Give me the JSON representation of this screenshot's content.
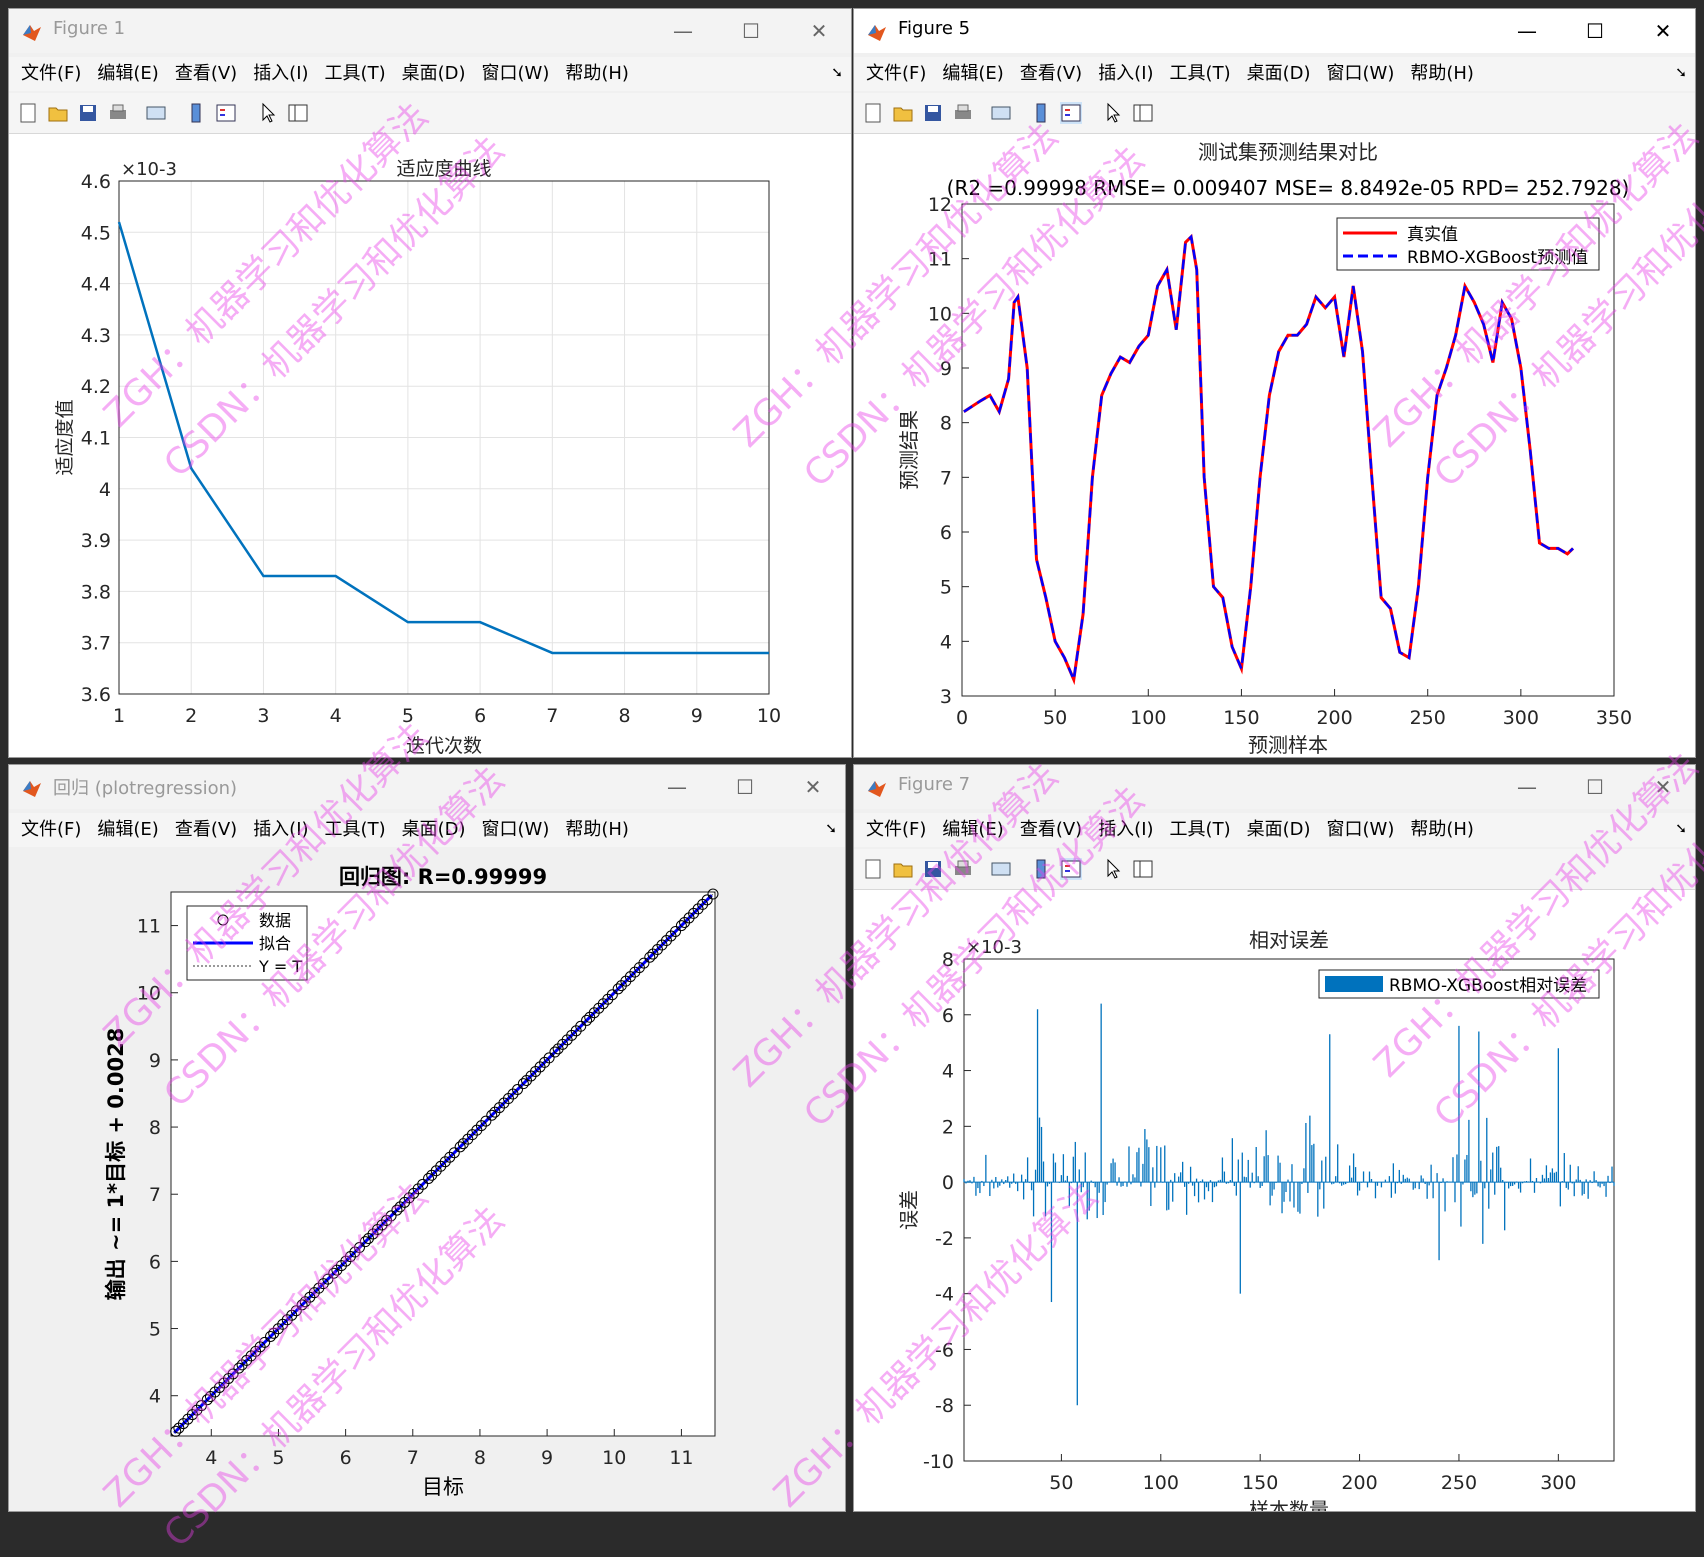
{
  "menus": [
    "文件(F)",
    "编辑(E)",
    "查看(V)",
    "插入(I)",
    "工具(T)",
    "桌面(D)",
    "窗口(W)",
    "帮助(H)"
  ],
  "fig1": {
    "title": "Figure 1",
    "chart_data": {
      "type": "line",
      "title": "适应度曲线",
      "xlabel": "迭代次数",
      "ylabel": "适应度值",
      "exponent": "×10-3",
      "x": [
        1,
        2,
        3,
        4,
        5,
        6,
        7,
        8,
        9,
        10
      ],
      "y": [
        4.52,
        4.04,
        3.83,
        3.83,
        3.74,
        3.74,
        3.68,
        3.68,
        3.68,
        3.68
      ],
      "xlim": [
        1,
        10
      ],
      "ylim": [
        3.6,
        4.6
      ],
      "xticks": [
        "1",
        "2",
        "3",
        "4",
        "5",
        "6",
        "7",
        "8",
        "9",
        "10"
      ],
      "yticks": [
        "3.6",
        "3.7",
        "3.8",
        "3.9",
        "4",
        "4.1",
        "4.2",
        "4.3",
        "4.4",
        "4.5",
        "4.6"
      ],
      "grid": true,
      "color": "#0072bd"
    }
  },
  "fig5": {
    "title": "Figure 5",
    "chart_data": {
      "type": "line",
      "title": "测试集预测结果对比",
      "subtitle": "(R2 =0.99998 RMSE= 0.009407 MSE= 8.8492e-05 RPD= 252.7928)",
      "xlabel": "预测样本",
      "ylabel": "预测结果",
      "xlim": [
        0,
        350
      ],
      "ylim": [
        3,
        12
      ],
      "xticks": [
        "0",
        "50",
        "100",
        "150",
        "200",
        "250",
        "300",
        "350"
      ],
      "yticks": [
        "3",
        "4",
        "5",
        "6",
        "7",
        "8",
        "9",
        "10",
        "11",
        "12"
      ],
      "legend": "top-right",
      "series": [
        {
          "name": "真实值",
          "color": "#ff0000",
          "style": "solid"
        },
        {
          "name": "RBMO-XGBoost预测值",
          "color": "#0000ff",
          "style": "dashed"
        }
      ],
      "x": [
        1,
        10,
        15,
        20,
        25,
        28,
        30,
        35,
        40,
        45,
        50,
        55,
        60,
        65,
        70,
        75,
        80,
        85,
        90,
        95,
        100,
        105,
        110,
        115,
        120,
        123,
        126,
        130,
        135,
        140,
        145,
        150,
        155,
        160,
        165,
        170,
        175,
        180,
        185,
        190,
        195,
        200,
        205,
        210,
        215,
        220,
        225,
        230,
        235,
        240,
        245,
        250,
        255,
        260,
        265,
        270,
        275,
        280,
        285,
        290,
        295,
        300,
        305,
        310,
        315,
        320,
        325,
        328
      ],
      "y": [
        8.2,
        8.4,
        8.5,
        8.2,
        8.8,
        10.2,
        10.3,
        9.0,
        5.5,
        4.8,
        4.0,
        3.7,
        3.3,
        4.5,
        7.0,
        8.5,
        8.9,
        9.2,
        9.1,
        9.4,
        9.6,
        10.5,
        10.8,
        9.7,
        11.3,
        11.4,
        10.8,
        7.0,
        5.0,
        4.8,
        3.9,
        3.5,
        5.0,
        7.0,
        8.5,
        9.3,
        9.6,
        9.6,
        9.8,
        10.3,
        10.1,
        10.3,
        9.2,
        10.5,
        9.3,
        7.0,
        4.8,
        4.6,
        3.8,
        3.7,
        5.0,
        7.0,
        8.5,
        9.0,
        9.6,
        10.5,
        10.2,
        9.8,
        9.1,
        10.2,
        9.9,
        9.0,
        7.5,
        5.8,
        5.7,
        5.7,
        5.6,
        5.7
      ]
    }
  },
  "fig_reg": {
    "title": "回归 (plotregression)",
    "chart_data": {
      "type": "scatter",
      "title": "回归图: R=0.99999",
      "xlabel": "目标",
      "ylabel": "输出 ~= 1*目标 + 0.0028",
      "xlim": [
        3.4,
        11.5
      ],
      "ylim": [
        3.4,
        11.5
      ],
      "xticks": [
        "4",
        "5",
        "6",
        "7",
        "8",
        "9",
        "10",
        "11"
      ],
      "yticks": [
        "4",
        "5",
        "6",
        "7",
        "8",
        "9",
        "10",
        "11"
      ],
      "legend": [
        "数据",
        "拟合",
        "Y = T"
      ]
    }
  },
  "fig7": {
    "title": "Figure 7",
    "chart_data": {
      "type": "bar",
      "title": "相对误差",
      "xlabel": "样本数量",
      "ylabel": "误差",
      "exponent": "×10-3",
      "xlim": [
        1,
        328
      ],
      "ylim": [
        -10,
        8
      ],
      "xticks": [
        "50",
        "100",
        "150",
        "200",
        "250",
        "300"
      ],
      "yticks": [
        "-10",
        "-8",
        "-6",
        "-4",
        "-2",
        "0",
        "2",
        "4",
        "6",
        "8"
      ],
      "legend": [
        "RBMO-XGBoost相对误差"
      ],
      "color": "#0072bd",
      "peaks": [
        [
          38,
          6.2
        ],
        [
          45,
          -4.3
        ],
        [
          58,
          -8.0
        ],
        [
          70,
          6.4
        ],
        [
          140,
          -4.0
        ],
        [
          185,
          5.3
        ],
        [
          240,
          -2.8
        ],
        [
          250,
          5.6
        ],
        [
          260,
          5.4
        ],
        [
          300,
          4.8
        ]
      ]
    }
  },
  "watermark": [
    "ZGH：机器学习和优化算法",
    "CSDN：机器学习和优化算法"
  ]
}
